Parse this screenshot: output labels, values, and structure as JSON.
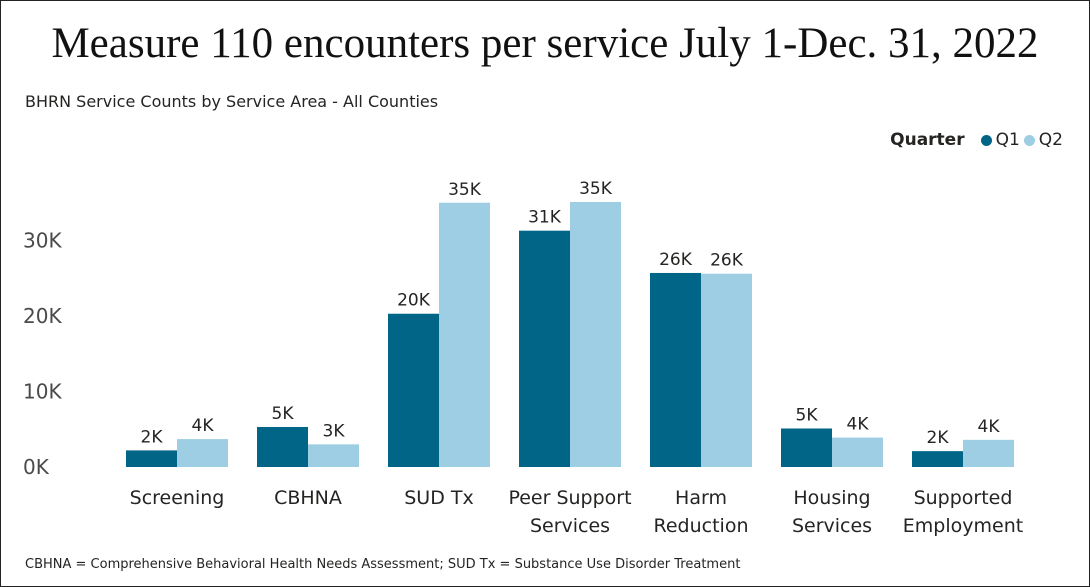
{
  "title": "Measure 110 encounters per service July 1-Dec. 31, 2022",
  "footnote": "CBHNA = Comprehensive Behavioral Health Needs Assessment; SUD Tx = Substance Use Disorder Treatment",
  "colors": {
    "q1": "#016587",
    "q2": "#9ECEE3"
  },
  "chart_data": {
    "type": "bar",
    "title": "BHRN Service Counts by Service Area - All Counties",
    "xlabel": "",
    "ylabel": "",
    "legend_title": "Quarter",
    "legend_position": "top-right",
    "grid": false,
    "categories": [
      [
        "Screening"
      ],
      [
        "CBHNA"
      ],
      [
        "SUD Tx"
      ],
      [
        "Peer Support",
        "Services"
      ],
      [
        "Harm",
        "Reduction"
      ],
      [
        "Housing",
        "Services"
      ],
      [
        "Supported",
        "Employment"
      ]
    ],
    "series": [
      {
        "name": "Q1",
        "values": [
          2200,
          5300,
          20300,
          31300,
          25700,
          5100,
          2100
        ],
        "labels": [
          "2K",
          "5K",
          "20K",
          "31K",
          "26K",
          "5K",
          "2K"
        ]
      },
      {
        "name": "Q2",
        "values": [
          3700,
          3000,
          35000,
          35100,
          25600,
          3900,
          3600
        ],
        "labels": [
          "4K",
          "3K",
          "35K",
          "35K",
          "26K",
          "4K",
          "4K"
        ]
      }
    ],
    "yticks": [
      {
        "value": 0,
        "label": "0K"
      },
      {
        "value": 10000,
        "label": "10K"
      },
      {
        "value": 20000,
        "label": "20K"
      },
      {
        "value": 30000,
        "label": "30K"
      }
    ],
    "ylim": [
      0,
      40000
    ]
  }
}
